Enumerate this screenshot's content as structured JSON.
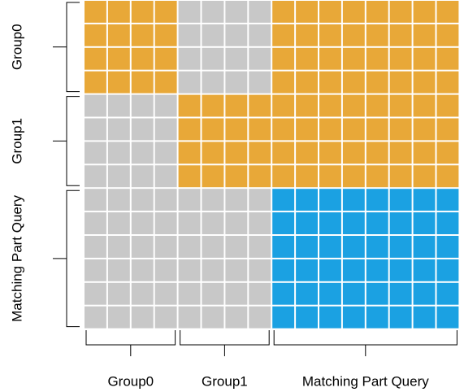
{
  "row_groups": [
    {
      "label": "Group0",
      "size": 4
    },
    {
      "label": "Group1",
      "size": 4
    },
    {
      "label": "Matching Part Query",
      "size": 6
    }
  ],
  "col_groups": [
    {
      "label": "Group0",
      "size": 4
    },
    {
      "label": "Group1",
      "size": 4
    },
    {
      "label": "Matching Part Query",
      "size": 8
    }
  ],
  "blocks": [
    [
      "#e8a838",
      "#c8c8c8",
      "#e8a838"
    ],
    [
      "#c8c8c8",
      "#e8a838",
      "#e8a838"
    ],
    [
      "#c8c8c8",
      "#c8c8c8",
      "#1ba1e2"
    ]
  ]
}
